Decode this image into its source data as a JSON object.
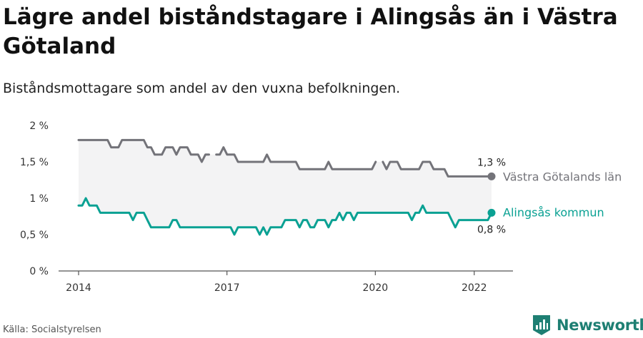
{
  "header": {
    "title": "Lägre andel biståndstagare i Alingsås än i Västra Götaland",
    "subtitle": "Biståndsmottagare som andel av den vuxna befolkningen."
  },
  "footer": {
    "source": "Källa: Socialstyrelsen",
    "brand": "Newsworthy"
  },
  "colors": {
    "lan": "#737379",
    "kommun": "#0aa193",
    "band": "#f3f3f4",
    "brand": "#1e7f73"
  },
  "chart_data": {
    "type": "line",
    "title": "Lägre andel biståndstagare i Alingsås än i Västra Götaland",
    "subtitle": "Biståndsmottagare som andel av den vuxna befolkningen.",
    "xlabel": "",
    "ylabel": "",
    "ylim": [
      0,
      2
    ],
    "yticks": [
      0,
      0.5,
      1,
      1.5,
      2
    ],
    "ytick_labels": [
      "0 %",
      "0,5 %",
      "1 %",
      "1,5 %",
      "2 %"
    ],
    "xlim": [
      2014,
      2022.35
    ],
    "xticks": [
      2014,
      2017,
      2020,
      2022
    ],
    "xtick_labels": [
      "2014",
      "2017",
      "2020",
      "2022"
    ],
    "grid": false,
    "series": [
      {
        "name": "Västra Götalands län",
        "end_label": "1,3 %",
        "values": [
          1.8,
          1.8,
          1.8,
          1.8,
          1.8,
          1.8,
          1.8,
          1.8,
          1.8,
          1.7,
          1.7,
          1.7,
          1.8,
          1.8,
          1.8,
          1.8,
          1.8,
          1.8,
          1.8,
          1.7,
          1.7,
          1.6,
          1.6,
          1.6,
          1.7,
          1.7,
          1.7,
          1.6,
          1.7,
          1.7,
          1.7,
          1.6,
          1.6,
          1.6,
          1.5,
          1.6,
          1.6,
          null,
          1.6,
          1.6,
          1.7,
          1.6,
          1.6,
          1.6,
          1.5,
          1.5,
          1.5,
          1.5,
          1.5,
          1.5,
          1.5,
          1.5,
          1.6,
          1.5,
          1.5,
          1.5,
          1.5,
          1.5,
          1.5,
          1.5,
          1.5,
          1.4,
          1.4,
          1.4,
          1.4,
          1.4,
          1.4,
          1.4,
          1.4,
          1.5,
          1.4,
          1.4,
          1.4,
          1.4,
          1.4,
          1.4,
          1.4,
          1.4,
          1.4,
          1.4,
          1.4,
          1.4,
          1.5,
          null,
          1.5,
          1.4,
          1.5,
          1.5,
          1.5,
          1.4,
          1.4,
          1.4,
          1.4,
          1.4,
          1.4,
          1.5,
          1.5,
          1.5,
          1.4,
          1.4,
          1.4,
          1.4,
          1.3,
          1.3,
          1.3,
          1.3,
          1.3,
          1.3,
          1.3,
          1.3,
          1.3,
          1.3,
          1.3,
          1.3,
          1.3
        ]
      },
      {
        "name": "Alingsås kommun",
        "end_label": "0,8 %",
        "values": [
          0.9,
          0.9,
          1.0,
          0.9,
          0.9,
          0.9,
          0.8,
          0.8,
          0.8,
          0.8,
          0.8,
          0.8,
          0.8,
          0.8,
          0.8,
          0.7,
          0.8,
          0.8,
          0.8,
          0.7,
          0.6,
          0.6,
          0.6,
          0.6,
          0.6,
          0.6,
          0.7,
          0.7,
          0.6,
          0.6,
          0.6,
          0.6,
          0.6,
          0.6,
          0.6,
          0.6,
          0.6,
          0.6,
          0.6,
          0.6,
          0.6,
          0.6,
          0.6,
          0.5,
          0.6,
          0.6,
          0.6,
          0.6,
          0.6,
          0.6,
          0.5,
          0.6,
          0.5,
          0.6,
          0.6,
          0.6,
          0.6,
          0.7,
          0.7,
          0.7,
          0.7,
          0.6,
          0.7,
          0.7,
          0.6,
          0.6,
          0.7,
          0.7,
          0.7,
          0.6,
          0.7,
          0.7,
          0.8,
          0.7,
          0.8,
          0.8,
          0.7,
          0.8,
          0.8,
          0.8,
          0.8,
          0.8,
          0.8,
          0.8,
          0.8,
          0.8,
          0.8,
          0.8,
          0.8,
          0.8,
          0.8,
          0.8,
          0.7,
          0.8,
          0.8,
          0.9,
          0.8,
          0.8,
          0.8,
          0.8,
          0.8,
          0.8,
          0.8,
          0.7,
          0.6,
          0.7,
          0.7,
          0.7,
          0.7,
          0.7,
          0.7,
          0.7,
          0.7,
          0.7,
          0.8
        ]
      }
    ],
    "legend": "line-end labels, right"
  }
}
